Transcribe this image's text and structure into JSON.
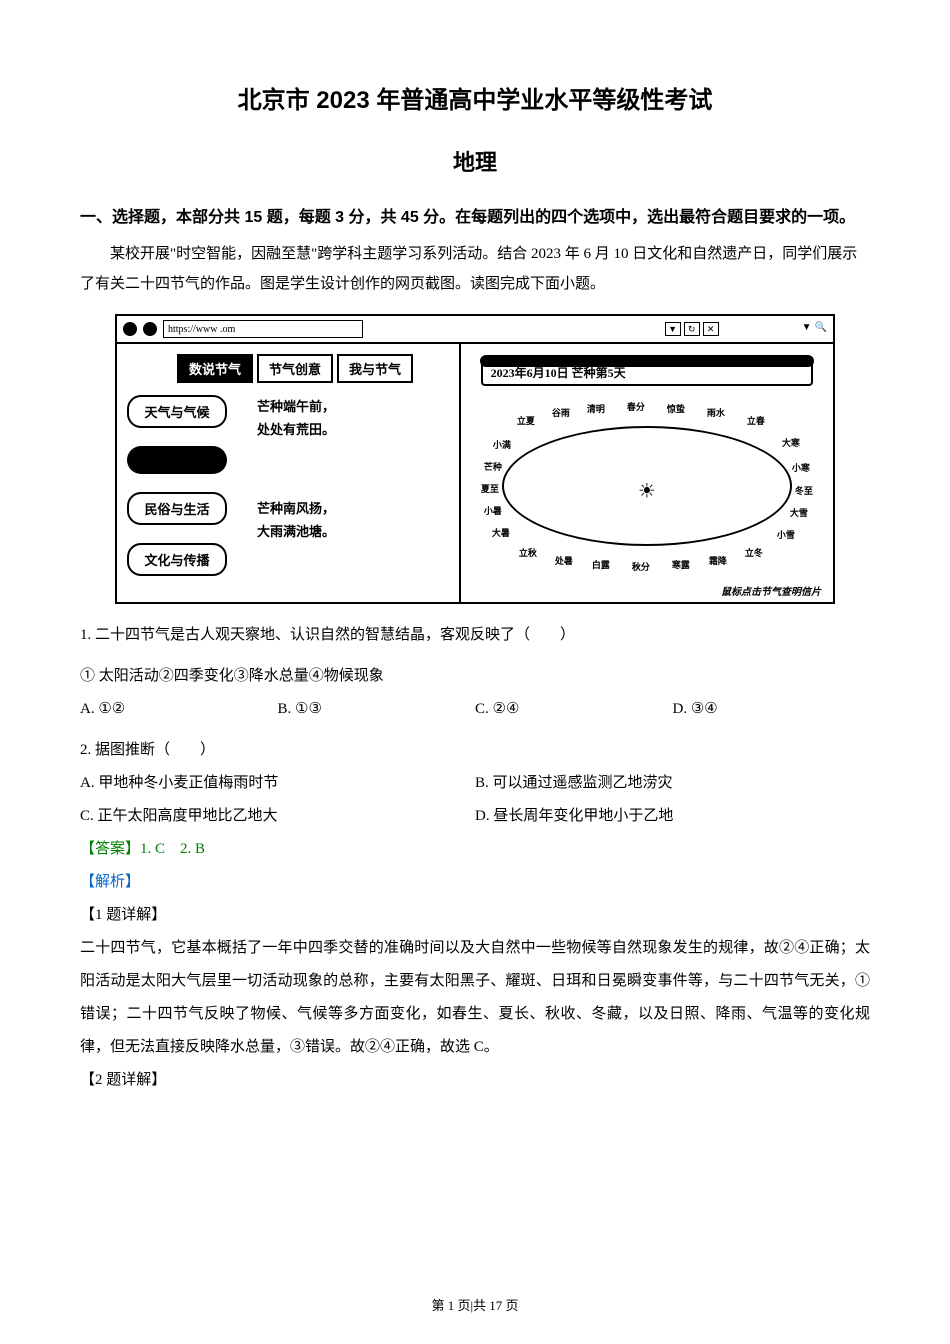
{
  "document": {
    "title_main": "北京市 2023 年普通高中学业水平等级性考试",
    "title_subject": "地理",
    "section_header": "一、选择题，本部分共 15 题，每题 3 分，共 45 分。在每题列出的四个选项中，选出最符合题目要求的一项。",
    "context": "某校开展\"时空智能，因融至慧\"跨学科主题学习系列活动。结合 2023 年 6 月 10 日文化和自然遗产日，同学们展示了有关二十四节气的作品。图是学生设计创作的网页截图。读图完成下面小题。",
    "figure": {
      "url_text": "https://www          .om",
      "url_icons": [
        "▼",
        "↻",
        "✕"
      ],
      "search_icon": "🔍",
      "tabs": [
        "数说节气",
        "节气创意",
        "我与节气"
      ],
      "active_tab_index": 0,
      "categories": [
        "天气与气候",
        "",
        "民俗与生活",
        "文化与传播"
      ],
      "center_texts": [
        "芒种端午前，\n处处有荒田。",
        "芒种南风扬，\n大雨满池塘。"
      ],
      "date_label": "2023年6月10日 芒种第5天",
      "sun_symbol": "☀",
      "solar_terms_top": [
        "立夏",
        "谷雨",
        "清明",
        "春分",
        "惊蛰",
        "雨水",
        "立春"
      ],
      "solar_terms_right": [
        "大寒",
        "小寒",
        "冬至",
        "大雪",
        "小雪"
      ],
      "solar_terms_bottom": [
        "立冬",
        "霜降",
        "寒露",
        "秋分",
        "白露",
        "处暑",
        "立秋"
      ],
      "solar_terms_left": [
        "大暑",
        "小暑",
        "夏至",
        "芒种",
        "小满"
      ],
      "extra_labels": [
        "小满",
        "芒种",
        "夏至",
        "小暑",
        "大暑"
      ],
      "footer_note": "鼠标点击节气查明信片"
    },
    "q1": {
      "stem": "1. 二十四节气是古人观天察地、认识自然的智慧结晶，客观反映了（　　）",
      "sub_options": "① 太阳活动②四季变化③降水总量④物候现象",
      "options": [
        "A. ①②",
        "B. ①③",
        "C. ②④",
        "D. ③④"
      ]
    },
    "q2": {
      "stem": "2. 据图推断（　　）",
      "options": [
        "A. 甲地种冬小麦正值梅雨时节",
        "B. 可以通过遥感监测乙地涝灾",
        "C. 正午太阳高度甲地比乙地大",
        "D. 昼长周年变化甲地小于乙地"
      ]
    },
    "answers": "【答案】1. C　2. B",
    "analysis_label": "【解析】",
    "explanation1": {
      "title": "【1 题详解】",
      "text": "二十四节气，它基本概括了一年中四季交替的准确时间以及大自然中一些物候等自然现象发生的规律，故②④正确；太阳活动是太阳大气层里一切活动现象的总称，主要有太阳黑子、耀斑、日珥和日冕瞬变事件等，与二十四节气无关，①错误；二十四节气反映了物候、气候等多方面变化，如春生、夏长、秋收、冬藏，以及日照、降雨、气温等的变化规律，但无法直接反映降水总量，③错误。故②④正确，故选 C。"
    },
    "explanation2_title": "【2 题详解】",
    "page_footer": "第 1 页|共 17 页",
    "colors": {
      "text": "#000000",
      "answer": "#008000",
      "analysis": "#0066cc",
      "background": "#ffffff"
    }
  }
}
